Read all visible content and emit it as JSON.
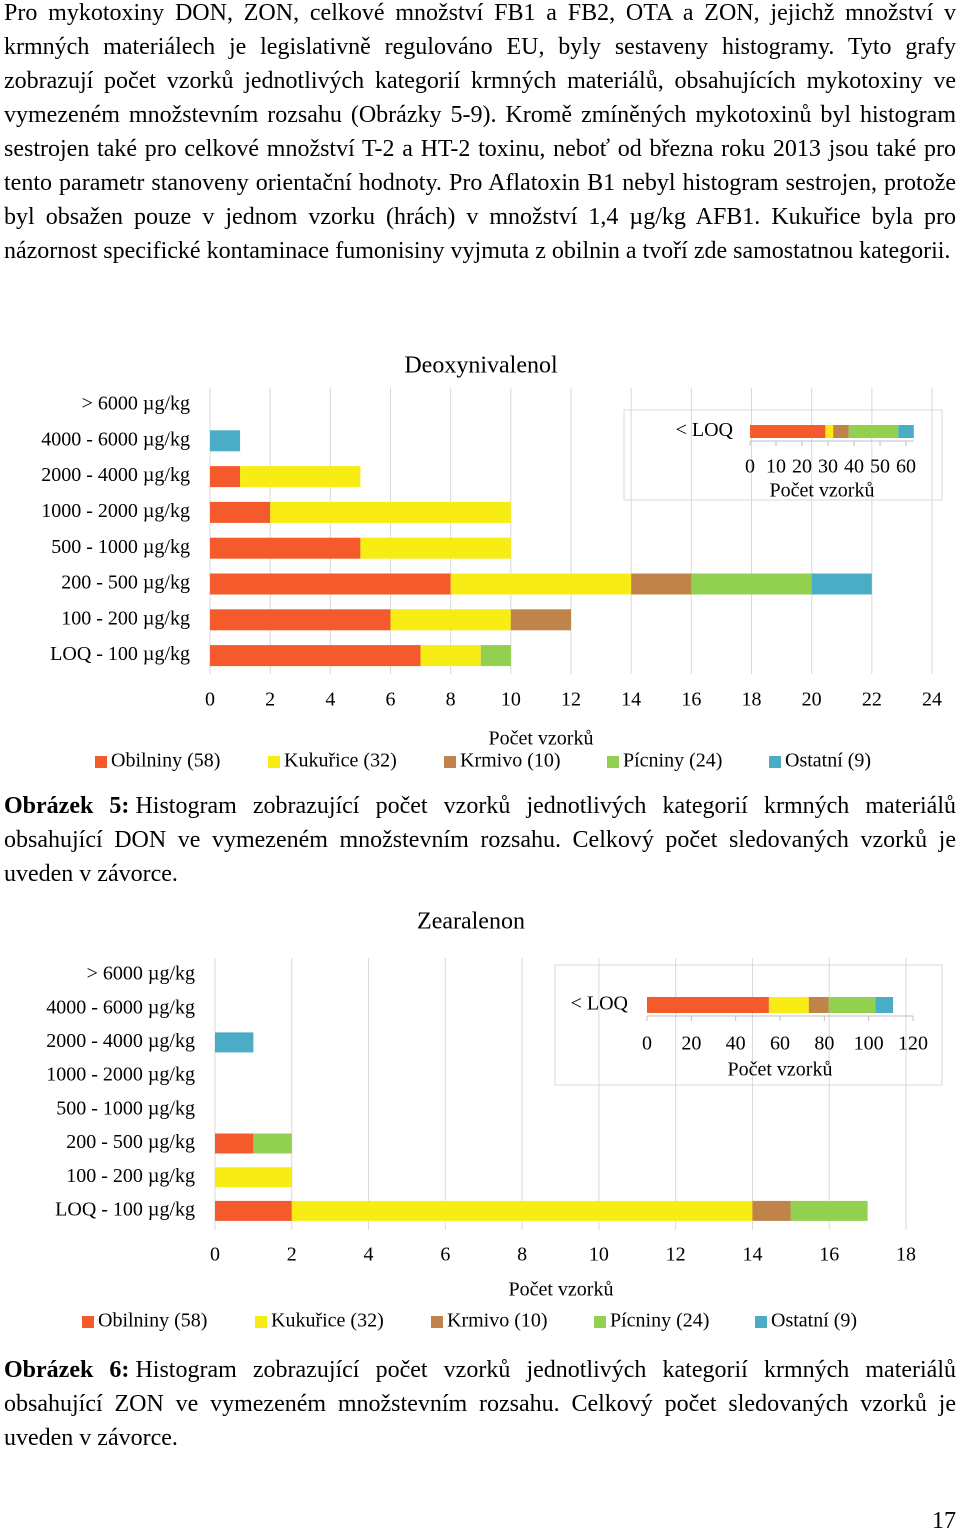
{
  "paragraph": "Pro mykotoxiny DON, ZON, celkové množství FB1 a FB2, OTA a ZON, jejichž množství v krmných materiálech je legislativně regulováno EU, byly sestaveny histogramy. Tyto grafy zobrazují počet vzorků jednotlivých kategorií krmných materiálů, obsahujících mykotoxiny ve vymezeném množstevním rozsahu (Obrázky 5-9). Kromě zmíněných mykotoxinů byl histogram sestrojen také pro celkové množství T-2 a HT-2 toxinu, neboť od března roku 2013 jsou také pro tento parametr stanoveny orientační hodnoty. Pro Aflatoxin B1 nebyl histogram sestrojen, protože byl obsažen pouze v jednom vzorku (hrách) v množství 1,4 µg/kg AFB1. Kukuřice byla pro názornost specifické kontaminace fumonisiny vyjmuta z obilnin a tvoří zde samostatnou kategorii.",
  "chart_data": [
    {
      "type": "bar",
      "orientation": "horizontal",
      "stacked": true,
      "title": "Deoxynivalenol",
      "x_label": "Počet vzorků",
      "categories": [
        "> 6000 µg/kg",
        "4000 - 6000 µg/kg",
        "2000 - 4000 µg/kg",
        "1000 - 2000 µg/kg",
        "500 - 1000 µg/kg",
        "200 - 500 µg/kg",
        "100 - 200 µg/kg",
        "LOQ - 100 µg/kg"
      ],
      "series": [
        {
          "name": "Obilniny (58)",
          "color": "#f55a2c",
          "values": [
            0,
            0,
            1,
            2,
            5,
            8,
            6,
            7
          ]
        },
        {
          "name": "Kukuřice (32)",
          "color": "#f7ec13",
          "values": [
            0,
            0,
            4,
            8,
            5,
            6,
            4,
            2
          ]
        },
        {
          "name": "Krmivo (10)",
          "color": "#c0834a",
          "values": [
            0,
            0,
            0,
            0,
            0,
            2,
            2,
            0
          ]
        },
        {
          "name": "Pícniny (24)",
          "color": "#92d050",
          "values": [
            0,
            0,
            0,
            0,
            0,
            4,
            0,
            1
          ]
        },
        {
          "name": "Ostatní (9)",
          "color": "#4bacc6",
          "values": [
            0,
            1,
            0,
            0,
            0,
            2,
            0,
            0
          ]
        }
      ],
      "xlim": [
        0,
        24
      ],
      "xticks": [
        0,
        2,
        4,
        6,
        8,
        10,
        12,
        14,
        16,
        18,
        20,
        22,
        24
      ],
      "grid": true,
      "legend": "bottom"
    },
    {
      "type": "bar",
      "orientation": "horizontal",
      "stacked": true,
      "x_label": "Počet vzorků",
      "categories": [
        "< LOQ"
      ],
      "series": [
        {
          "color": "#f55a2c",
          "values": [
            29
          ]
        },
        {
          "color": "#f7ec13",
          "values": [
            3
          ]
        },
        {
          "color": "#c0834a",
          "values": [
            6
          ]
        },
        {
          "color": "#92d050",
          "values": [
            19
          ]
        },
        {
          "color": "#4bacc6",
          "values": [
            6
          ]
        }
      ],
      "xlim": [
        0,
        63
      ],
      "xticks": [
        0,
        10,
        20,
        30,
        40,
        50,
        60
      ],
      "grid": false
    },
    {
      "type": "bar",
      "orientation": "horizontal",
      "stacked": true,
      "title": "Zearalenon",
      "x_label": "Počet vzorků",
      "categories": [
        "> 6000 µg/kg",
        "4000 - 6000 µg/kg",
        "2000 - 4000 µg/kg",
        "1000 - 2000 µg/kg",
        "500 - 1000 µg/kg",
        "200 - 500 µg/kg",
        "100 - 200 µg/kg",
        "LOQ - 100 µg/kg"
      ],
      "series": [
        {
          "name": "Obilniny (58)",
          "color": "#f55a2c",
          "values": [
            0,
            0,
            0,
            0,
            0,
            1,
            0,
            2
          ]
        },
        {
          "name": "Kukuřice (32)",
          "color": "#f7ec13",
          "values": [
            0,
            0,
            0,
            0,
            0,
            0,
            2,
            12
          ]
        },
        {
          "name": "Krmivo (10)",
          "color": "#c0834a",
          "values": [
            0,
            0,
            0,
            0,
            0,
            0,
            0,
            1
          ]
        },
        {
          "name": "Pícniny (24)",
          "color": "#92d050",
          "values": [
            0,
            0,
            0,
            0,
            0,
            1,
            0,
            2
          ]
        },
        {
          "name": "Ostatní (9)",
          "color": "#4bacc6",
          "values": [
            0,
            0,
            1,
            0,
            0,
            0,
            0,
            0
          ]
        }
      ],
      "xlim": [
        0,
        18
      ],
      "xticks": [
        0,
        2,
        4,
        6,
        8,
        10,
        12,
        14,
        16,
        18
      ],
      "grid": true,
      "legend": "bottom"
    },
    {
      "type": "bar",
      "orientation": "horizontal",
      "stacked": true,
      "x_label": "Počet vzorků",
      "categories": [
        "< LOQ"
      ],
      "series": [
        {
          "color": "#f55a2c",
          "values": [
            55
          ]
        },
        {
          "color": "#f7ec13",
          "values": [
            18
          ]
        },
        {
          "color": "#c0834a",
          "values": [
            9
          ]
        },
        {
          "color": "#92d050",
          "values": [
            21
          ]
        },
        {
          "color": "#4bacc6",
          "values": [
            8
          ]
        }
      ],
      "xlim": [
        0,
        120
      ],
      "xticks": [
        0,
        20,
        40,
        60,
        80,
        100,
        120
      ],
      "grid": false
    }
  ],
  "captions": [
    {
      "label": "Obrázek 5:",
      "text": "Histogram zobrazující počet vzorků jednotlivých kategorií krmných materiálů obsahující DON ve vymezeném množstevním rozsahu. Celkový počet sledovaných vzorků je uveden v závorce."
    },
    {
      "label": "Obrázek 6:",
      "text": "Histogram zobrazující počet vzorků jednotlivých kategorií krmných materiálů obsahující ZON ve vymezeném množstevním rozsahu. Celkový počet sledovaných vzorků je uveden v závorce."
    }
  ],
  "page_number": "17"
}
